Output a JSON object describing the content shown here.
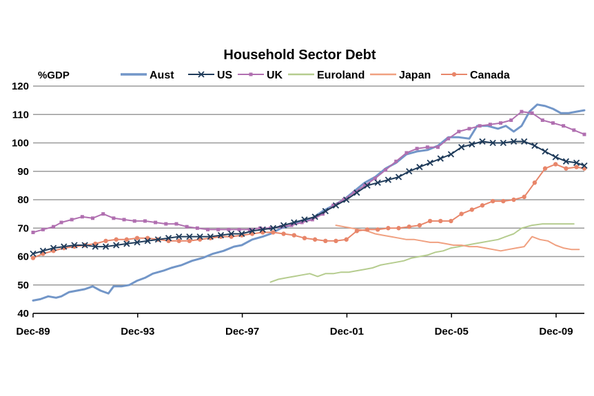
{
  "chart_data": {
    "type": "line",
    "title": "Household Sector Debt",
    "ylabel": "%GDP",
    "xlabel": "",
    "ylim": [
      40,
      120
    ],
    "yticks": [
      40,
      50,
      60,
      70,
      80,
      90,
      100,
      110,
      120
    ],
    "xlim": [
      1989.92,
      2011.0
    ],
    "xticks": [
      {
        "x": 1989.92,
        "label": "Dec-89"
      },
      {
        "x": 1993.92,
        "label": "Dec-93"
      },
      {
        "x": 1997.92,
        "label": "Dec-97"
      },
      {
        "x": 2001.92,
        "label": "Dec-01"
      },
      {
        "x": 2005.92,
        "label": "Dec-05"
      },
      {
        "x": 2009.92,
        "label": "Dec-09"
      }
    ],
    "grid": "horizontal",
    "legend_position": "top",
    "series": [
      {
        "name": "Aust",
        "color": "#7296c8",
        "marker": "none",
        "width": 3,
        "x": [
          1989.92,
          1990.2,
          1990.5,
          1990.8,
          1991.0,
          1991.3,
          1991.6,
          1991.9,
          1992.2,
          1992.5,
          1992.8,
          1993.0,
          1993.3,
          1993.6,
          1993.9,
          1994.2,
          1994.5,
          1994.9,
          1995.2,
          1995.6,
          1996.0,
          1996.4,
          1996.8,
          1997.2,
          1997.6,
          1997.9,
          1998.3,
          1998.7,
          1999.0,
          1999.4,
          1999.8,
          2000.2,
          2000.6,
          2001.0,
          2001.4,
          2001.8,
          2002.2,
          2002.6,
          2003.0,
          2003.4,
          2003.8,
          2004.2,
          2004.6,
          2005.0,
          2005.4,
          2005.8,
          2006.2,
          2006.6,
          2006.9,
          2007.3,
          2007.7,
          2008.0,
          2008.3,
          2008.6,
          2008.9,
          2009.2,
          2009.5,
          2009.8,
          2010.1,
          2010.4,
          2010.7,
          2011.0
        ],
        "y": [
          44.5,
          45,
          46,
          45.5,
          46,
          47.5,
          48,
          48.5,
          49.5,
          48,
          47,
          49.5,
          49.5,
          50,
          51.5,
          52.5,
          54,
          55,
          56,
          57,
          58.5,
          59.5,
          61,
          62,
          63.5,
          64,
          66,
          67,
          68,
          70,
          71,
          72.5,
          73.5,
          76,
          78,
          80,
          83,
          86,
          88,
          91,
          93,
          96,
          97,
          97.5,
          99,
          102,
          102,
          101.5,
          106,
          106,
          105,
          106,
          104,
          106,
          111,
          113.5,
          113,
          112,
          110.5,
          110.5,
          111,
          111.5
        ]
      },
      {
        "name": "US",
        "color": "#1f3b5a",
        "marker": "x",
        "width": 2,
        "x": [
          1989.92,
          1990.3,
          1990.7,
          1991.1,
          1991.5,
          1991.9,
          1992.3,
          1992.7,
          1993.1,
          1993.5,
          1993.9,
          1994.3,
          1994.7,
          1995.1,
          1995.5,
          1995.9,
          1996.3,
          1996.7,
          1997.1,
          1997.5,
          1997.9,
          1998.3,
          1998.7,
          1999.1,
          1999.5,
          1999.9,
          2000.3,
          2000.7,
          2001.1,
          2001.5,
          2001.9,
          2002.3,
          2002.7,
          2003.1,
          2003.5,
          2003.9,
          2004.3,
          2004.7,
          2005.1,
          2005.5,
          2005.9,
          2006.3,
          2006.7,
          2007.1,
          2007.5,
          2007.9,
          2008.3,
          2008.7,
          2009.1,
          2009.5,
          2009.9,
          2010.3,
          2010.7,
          2011.0
        ],
        "y": [
          61,
          62,
          63,
          63.5,
          64,
          64,
          63.5,
          63.5,
          64,
          64.5,
          65,
          65.5,
          66,
          66.5,
          67,
          67,
          67,
          67,
          67.5,
          68,
          68,
          69,
          69.5,
          70,
          71,
          72,
          73,
          74,
          76,
          78,
          80,
          82.5,
          85,
          86,
          87,
          88,
          90,
          91.5,
          93,
          94.5,
          96,
          98.5,
          99.5,
          100.5,
          100,
          100,
          100.5,
          100.5,
          99,
          97,
          95,
          93.5,
          93,
          92
        ]
      },
      {
        "name": "UK",
        "color": "#b06fb0",
        "marker": "square",
        "width": 2,
        "x": [
          1989.92,
          1990.3,
          1990.7,
          1991.0,
          1991.4,
          1991.8,
          1992.2,
          1992.6,
          1993.0,
          1993.4,
          1993.8,
          1994.2,
          1994.6,
          1995.0,
          1995.4,
          1995.8,
          1996.2,
          1996.6,
          1997.0,
          1997.4,
          1997.8,
          1998.2,
          1998.6,
          1999.0,
          1999.4,
          1999.8,
          2000.2,
          2000.6,
          2001.0,
          2001.4,
          2001.8,
          2002.2,
          2002.6,
          2003.0,
          2003.4,
          2003.8,
          2004.2,
          2004.6,
          2005.0,
          2005.4,
          2005.8,
          2006.2,
          2006.6,
          2007.0,
          2007.4,
          2007.8,
          2008.2,
          2008.6,
          2009.0,
          2009.4,
          2009.8,
          2010.2,
          2010.6,
          2011.0
        ],
        "y": [
          68.5,
          69.5,
          70.5,
          72,
          73,
          74,
          73.5,
          75,
          73.5,
          73,
          72.5,
          72.5,
          72,
          71.5,
          71.5,
          70.5,
          70,
          69.5,
          69.5,
          69.5,
          69.5,
          69.5,
          70,
          70,
          70.5,
          71,
          72,
          73,
          75,
          78,
          80,
          82.5,
          85,
          87.5,
          90.5,
          93.5,
          96.5,
          98,
          98.5,
          98.5,
          101.5,
          104,
          105,
          106,
          106.5,
          107,
          108,
          111,
          110.5,
          108,
          107,
          106,
          104.5,
          103
        ]
      },
      {
        "name": "Euroland",
        "color": "#b5cc8e",
        "marker": "none",
        "width": 2,
        "x": [
          1999.0,
          1999.3,
          1999.6,
          1999.9,
          2000.2,
          2000.5,
          2000.8,
          2001.1,
          2001.4,
          2001.7,
          2002.0,
          2002.3,
          2002.6,
          2002.9,
          2003.2,
          2003.5,
          2003.8,
          2004.1,
          2004.4,
          2004.7,
          2005.0,
          2005.3,
          2005.6,
          2005.9,
          2006.2,
          2006.5,
          2006.8,
          2007.1,
          2007.4,
          2007.7,
          2008.0,
          2008.3,
          2008.6,
          2009.0,
          2009.4,
          2009.8,
          2010.2,
          2010.6
        ],
        "y": [
          51,
          52,
          52.5,
          53,
          53.5,
          54,
          53,
          54,
          54,
          54.5,
          54.5,
          55,
          55.5,
          56,
          57,
          57.5,
          58,
          58.5,
          59.5,
          60,
          60.5,
          61.5,
          62,
          63,
          63.5,
          64,
          64.5,
          65,
          65.5,
          66,
          67,
          68,
          70,
          71,
          71.5,
          71.5,
          71.5,
          71.5
        ]
      },
      {
        "name": "Japan",
        "color": "#f0a080",
        "marker": "none",
        "width": 2,
        "x": [
          2001.5,
          2001.8,
          2002.1,
          2002.4,
          2002.7,
          2003.0,
          2003.3,
          2003.6,
          2003.9,
          2004.2,
          2004.5,
          2004.8,
          2005.1,
          2005.4,
          2005.7,
          2006.0,
          2006.3,
          2006.6,
          2006.9,
          2007.2,
          2007.5,
          2007.8,
          2008.1,
          2008.4,
          2008.7,
          2009.0,
          2009.3,
          2009.6,
          2009.9,
          2010.2,
          2010.5,
          2010.8
        ],
        "y": [
          71,
          70.5,
          70,
          69.5,
          69,
          68,
          67.5,
          67,
          66.5,
          66,
          66,
          65.5,
          65,
          65,
          64.5,
          64,
          64,
          63.5,
          63.5,
          63,
          62.5,
          62,
          62.5,
          63,
          63.5,
          67,
          66,
          65.5,
          64,
          63,
          62.5,
          62.5
        ]
      },
      {
        "name": "Canada",
        "color": "#e8866a",
        "marker": "circle",
        "width": 2,
        "x": [
          1989.92,
          1990.3,
          1990.7,
          1991.1,
          1991.5,
          1991.9,
          1992.3,
          1992.7,
          1993.1,
          1993.5,
          1993.9,
          1994.3,
          1994.7,
          1995.1,
          1995.5,
          1995.9,
          1996.3,
          1996.7,
          1997.1,
          1997.5,
          1997.9,
          1998.3,
          1998.7,
          1999.1,
          1999.5,
          1999.9,
          2000.3,
          2000.7,
          2001.1,
          2001.5,
          2001.9,
          2002.3,
          2002.7,
          2003.1,
          2003.5,
          2003.9,
          2004.3,
          2004.7,
          2005.1,
          2005.5,
          2005.9,
          2006.3,
          2006.7,
          2007.1,
          2007.5,
          2007.9,
          2008.3,
          2008.7,
          2009.1,
          2009.5,
          2009.9,
          2010.3,
          2010.7,
          2011.0
        ],
        "y": [
          59.5,
          61,
          62,
          63,
          63.5,
          64,
          64.5,
          65.5,
          66,
          66,
          66.5,
          66.5,
          66,
          65.5,
          65.5,
          65.5,
          66,
          66.5,
          67,
          67,
          67.5,
          68,
          68.5,
          68.5,
          68,
          67.5,
          66.5,
          66,
          65.5,
          65.5,
          66,
          69,
          69.5,
          69.5,
          70,
          70,
          70.5,
          71,
          72.5,
          72.5,
          72.5,
          75,
          76.5,
          78,
          79.5,
          79.5,
          80,
          81,
          86,
          91,
          92.5,
          91,
          91.5,
          91
        ]
      }
    ]
  }
}
